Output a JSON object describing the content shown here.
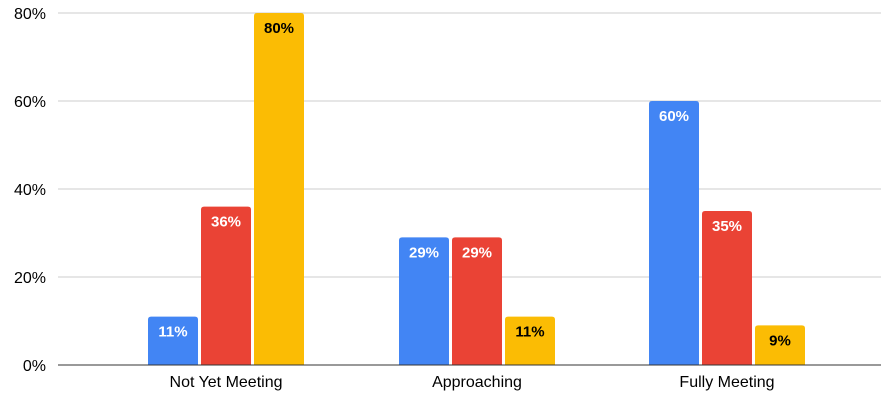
{
  "chart_data": {
    "type": "bar",
    "categories": [
      "Not Yet Meeting",
      "Approaching",
      "Fully Meeting"
    ],
    "series": [
      {
        "values": [
          11,
          29,
          60
        ],
        "labels": [
          "11%",
          "29%",
          "60%"
        ],
        "color": "#4285F4",
        "label_color": "#ffffff"
      },
      {
        "values": [
          36,
          29,
          35
        ],
        "labels": [
          "36%",
          "29%",
          "35%"
        ],
        "color": "#EA4335",
        "label_color": "#ffffff"
      },
      {
        "values": [
          80,
          11,
          9
        ],
        "labels": [
          "80%",
          "11%",
          "9%"
        ],
        "color": "#FBBC04",
        "label_color": "#000000"
      }
    ],
    "y_ticks": [
      "0%",
      "20%",
      "40%",
      "60%",
      "80%"
    ],
    "ylim": [
      0,
      80
    ],
    "grid": true,
    "legend": "none",
    "title": "",
    "xlabel": "",
    "ylabel": ""
  }
}
